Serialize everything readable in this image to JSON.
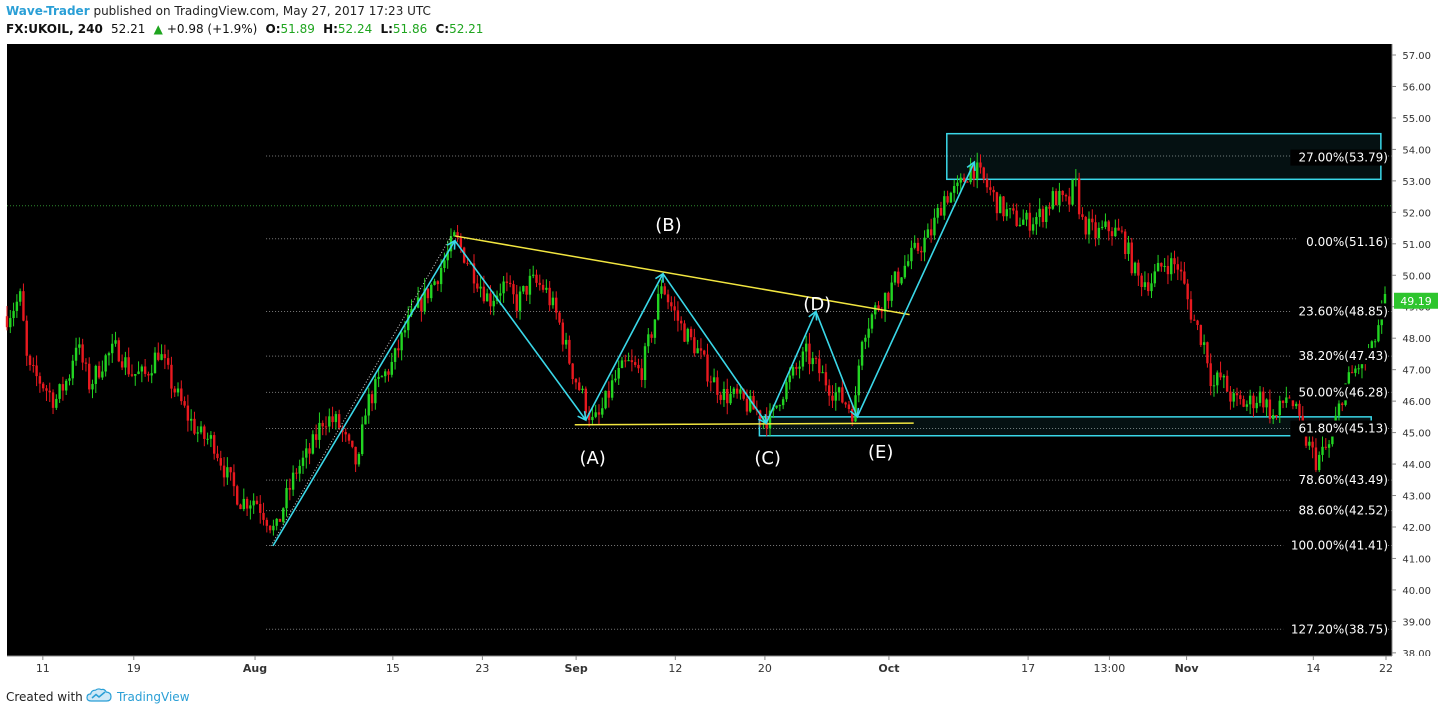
{
  "header": {
    "author": "Wave-Trader",
    "published": "published on TradingView.com, May 27, 2017 17:23 UTC",
    "symbol": "FX:UKOIL, 240",
    "last": "52.21",
    "change_arrow": "▲",
    "change": "+0.98 (+1.9%)",
    "o_label": "O:",
    "o_value": "51.89",
    "h_label": "H:",
    "h_value": "52.24",
    "l_label": "L:",
    "l_value": "51.86",
    "c_label": "C:",
    "c_value": "52.21"
  },
  "footer": {
    "created_with": "Created with",
    "brand": "TradingView",
    "logo_icon": "tradingview-cloud-icon"
  },
  "chart_data": {
    "type": "candlestick",
    "symbol": "FX:UKOIL",
    "timeframe": "240",
    "colors": {
      "up": "#22d422",
      "down": "#e8191f",
      "background": "#000000",
      "wave": "#3ad7e8",
      "trendline": "#f2e640",
      "box": "#3ad7e8",
      "price_tag": "#2ec52e"
    },
    "ylim": [
      37.9,
      57.35
    ],
    "y_ticks": [
      "38.00",
      "39.00",
      "40.00",
      "41.00",
      "42.00",
      "43.00",
      "44.00",
      "45.00",
      "46.00",
      "47.00",
      "48.00",
      "49.00",
      "50.00",
      "51.00",
      "52.00",
      "53.00",
      "54.00",
      "55.00",
      "56.00",
      "57.00"
    ],
    "x_ticks": [
      {
        "label": "11",
        "t": 0.026
      },
      {
        "label": "19",
        "t": 0.092
      },
      {
        "label": "Aug",
        "t": 0.18
      },
      {
        "label": "15",
        "t": 0.28
      },
      {
        "label": "23",
        "t": 0.345
      },
      {
        "label": "Sep",
        "t": 0.413
      },
      {
        "label": "12",
        "t": 0.485
      },
      {
        "label": "20",
        "t": 0.55
      },
      {
        "label": "Oct",
        "t": 0.64
      },
      {
        "label": "17",
        "t": 0.741
      },
      {
        "label": "13:00",
        "t": 0.8
      },
      {
        "label": "Nov",
        "t": 0.856
      },
      {
        "label": "14",
        "t": 0.948
      },
      {
        "label": "22",
        "t": 1.007
      }
    ],
    "current_price": "49.19",
    "current_price_value": 49.19,
    "last_close_line": 52.21,
    "price_path": [
      [
        0.0,
        48.7
      ],
      [
        0.01,
        49.3
      ],
      [
        0.015,
        47.0
      ],
      [
        0.025,
        46.6
      ],
      [
        0.035,
        46.0
      ],
      [
        0.045,
        46.8
      ],
      [
        0.05,
        47.9
      ],
      [
        0.06,
        46.5
      ],
      [
        0.07,
        47.3
      ],
      [
        0.08,
        47.7
      ],
      [
        0.09,
        46.9
      ],
      [
        0.1,
        46.8
      ],
      [
        0.11,
        47.6
      ],
      [
        0.12,
        46.5
      ],
      [
        0.13,
        45.6
      ],
      [
        0.14,
        44.9
      ],
      [
        0.15,
        44.7
      ],
      [
        0.16,
        43.6
      ],
      [
        0.17,
        42.8
      ],
      [
        0.18,
        42.9
      ],
      [
        0.19,
        42.2
      ],
      [
        0.195,
        41.8
      ],
      [
        0.2,
        42.6
      ],
      [
        0.21,
        43.8
      ],
      [
        0.22,
        44.4
      ],
      [
        0.23,
        45.5
      ],
      [
        0.24,
        45.3
      ],
      [
        0.25,
        44.3
      ],
      [
        0.255,
        43.9
      ],
      [
        0.26,
        45.8
      ],
      [
        0.27,
        46.6
      ],
      [
        0.28,
        47.2
      ],
      [
        0.29,
        48.4
      ],
      [
        0.3,
        49.1
      ],
      [
        0.31,
        49.8
      ],
      [
        0.32,
        50.7
      ],
      [
        0.325,
        51.2
      ],
      [
        0.33,
        50.8
      ],
      [
        0.34,
        50.0
      ],
      [
        0.35,
        49.2
      ],
      [
        0.36,
        49.7
      ],
      [
        0.37,
        49.1
      ],
      [
        0.38,
        49.8
      ],
      [
        0.39,
        49.6
      ],
      [
        0.4,
        48.6
      ],
      [
        0.41,
        47.0
      ],
      [
        0.42,
        45.9
      ],
      [
        0.425,
        45.3
      ],
      [
        0.43,
        45.5
      ],
      [
        0.44,
        46.6
      ],
      [
        0.45,
        47.2
      ],
      [
        0.46,
        46.9
      ],
      [
        0.47,
        48.6
      ],
      [
        0.475,
        49.8
      ],
      [
        0.48,
        49.2
      ],
      [
        0.49,
        48.3
      ],
      [
        0.5,
        47.7
      ],
      [
        0.51,
        46.8
      ],
      [
        0.52,
        46.2
      ],
      [
        0.53,
        46.1
      ],
      [
        0.54,
        45.8
      ],
      [
        0.55,
        45.5
      ],
      [
        0.555,
        45.4
      ],
      [
        0.56,
        46.1
      ],
      [
        0.57,
        46.8
      ],
      [
        0.58,
        47.5
      ],
      [
        0.59,
        46.9
      ],
      [
        0.6,
        46.3
      ],
      [
        0.61,
        45.9
      ],
      [
        0.615,
        45.6
      ],
      [
        0.62,
        48.1
      ],
      [
        0.63,
        48.9
      ],
      [
        0.64,
        49.5
      ],
      [
        0.65,
        50.2
      ],
      [
        0.66,
        50.8
      ],
      [
        0.67,
        51.3
      ],
      [
        0.68,
        52.5
      ],
      [
        0.69,
        52.7
      ],
      [
        0.7,
        53.5
      ],
      [
        0.71,
        52.9
      ],
      [
        0.72,
        52.2
      ],
      [
        0.73,
        51.8
      ],
      [
        0.74,
        51.7
      ],
      [
        0.75,
        51.9
      ],
      [
        0.76,
        52.5
      ],
      [
        0.77,
        52.2
      ],
      [
        0.775,
        53.0
      ],
      [
        0.78,
        51.7
      ],
      [
        0.79,
        51.3
      ],
      [
        0.8,
        51.5
      ],
      [
        0.81,
        51.2
      ],
      [
        0.82,
        49.9
      ],
      [
        0.83,
        49.8
      ],
      [
        0.84,
        50.4
      ],
      [
        0.85,
        50.3
      ],
      [
        0.86,
        48.7
      ],
      [
        0.87,
        47.7
      ],
      [
        0.875,
        46.4
      ],
      [
        0.88,
        46.8
      ],
      [
        0.89,
        46.0
      ],
      [
        0.9,
        45.9
      ],
      [
        0.91,
        46.2
      ],
      [
        0.92,
        45.4
      ],
      [
        0.93,
        46.3
      ],
      [
        0.94,
        45.0
      ],
      [
        0.95,
        44.1
      ],
      [
        0.96,
        44.6
      ],
      [
        0.97,
        46.4
      ],
      [
        0.98,
        47.1
      ],
      [
        0.99,
        47.5
      ],
      [
        1.0,
        49.2
      ]
    ],
    "fibonacci_levels": [
      {
        "label": "27.00%(53.79)",
        "value": 53.79,
        "text_value": 53.74
      },
      {
        "label": "0.00%(51.16)",
        "value": 51.16,
        "text_value": 51.06
      },
      {
        "label": "23.60%(48.85)",
        "value": 48.85,
        "text_value": 48.85
      },
      {
        "label": "38.20%(47.43)",
        "value": 47.43,
        "text_value": 47.43
      },
      {
        "label": "50.00%(46.28)",
        "value": 46.28,
        "text_value": 46.28
      },
      {
        "label": "61.80%(45.13)",
        "value": 45.13,
        "text_value": 45.13
      },
      {
        "label": "78.60%(43.49)",
        "value": 43.49,
        "text_value": 43.49
      },
      {
        "label": "88.60%(42.52)",
        "value": 42.52,
        "text_value": 42.52
      },
      {
        "label": "100.00%(41.41)",
        "value": 41.41,
        "text_value": 41.41
      },
      {
        "label": "127.20%(38.75)",
        "value": 38.75,
        "text_value": 38.75
      }
    ],
    "wave_labels": [
      {
        "label": "(A)",
        "t": 0.425,
        "value": 44.0
      },
      {
        "label": "(B)",
        "t": 0.48,
        "value": 51.4
      },
      {
        "label": "(C)",
        "t": 0.552,
        "value": 44.0
      },
      {
        "label": "(D)",
        "t": 0.588,
        "value": 48.9
      },
      {
        "label": "(E)",
        "t": 0.634,
        "value": 44.2
      }
    ],
    "wave_path": [
      [
        0.193,
        41.4
      ],
      [
        0.325,
        51.1
      ],
      [
        0.42,
        45.4
      ],
      [
        0.476,
        50.05
      ],
      [
        0.551,
        45.3
      ],
      [
        0.587,
        48.85
      ],
      [
        0.617,
        45.5
      ],
      [
        0.702,
        53.6
      ]
    ],
    "trendlines": [
      {
        "from": [
          0.325,
          51.25
        ],
        "to": [
          0.655,
          48.75
        ]
      },
      {
        "from": [
          0.412,
          45.25
        ],
        "to": [
          0.658,
          45.3
        ]
      }
    ],
    "boxes": [
      {
        "t1": 0.682,
        "t2": 0.997,
        "v1": 54.5,
        "v2": 53.05
      },
      {
        "t1": 0.546,
        "t2": 0.99,
        "v1": 45.5,
        "v2": 44.9
      }
    ]
  }
}
